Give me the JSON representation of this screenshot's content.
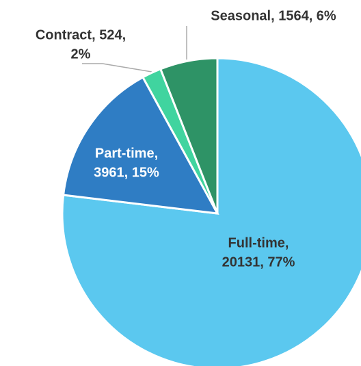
{
  "chart_data": {
    "type": "pie",
    "categories": [
      "Full-time",
      "Part-time",
      "Contract",
      "Seasonal"
    ],
    "values": [
      20131,
      3961,
      524,
      1564
    ],
    "value_labels": [
      [
        "Full-time,",
        "20131, 77%"
      ],
      [
        "Part-time,",
        "3961, 15%"
      ],
      [
        "Contract, 524,",
        "2%"
      ],
      [
        "Seasonal, 1564, 6%"
      ]
    ],
    "colors": [
      "#5bc8ef",
      "#2f7dc4",
      "#40d49f",
      "#2e9366"
    ]
  }
}
